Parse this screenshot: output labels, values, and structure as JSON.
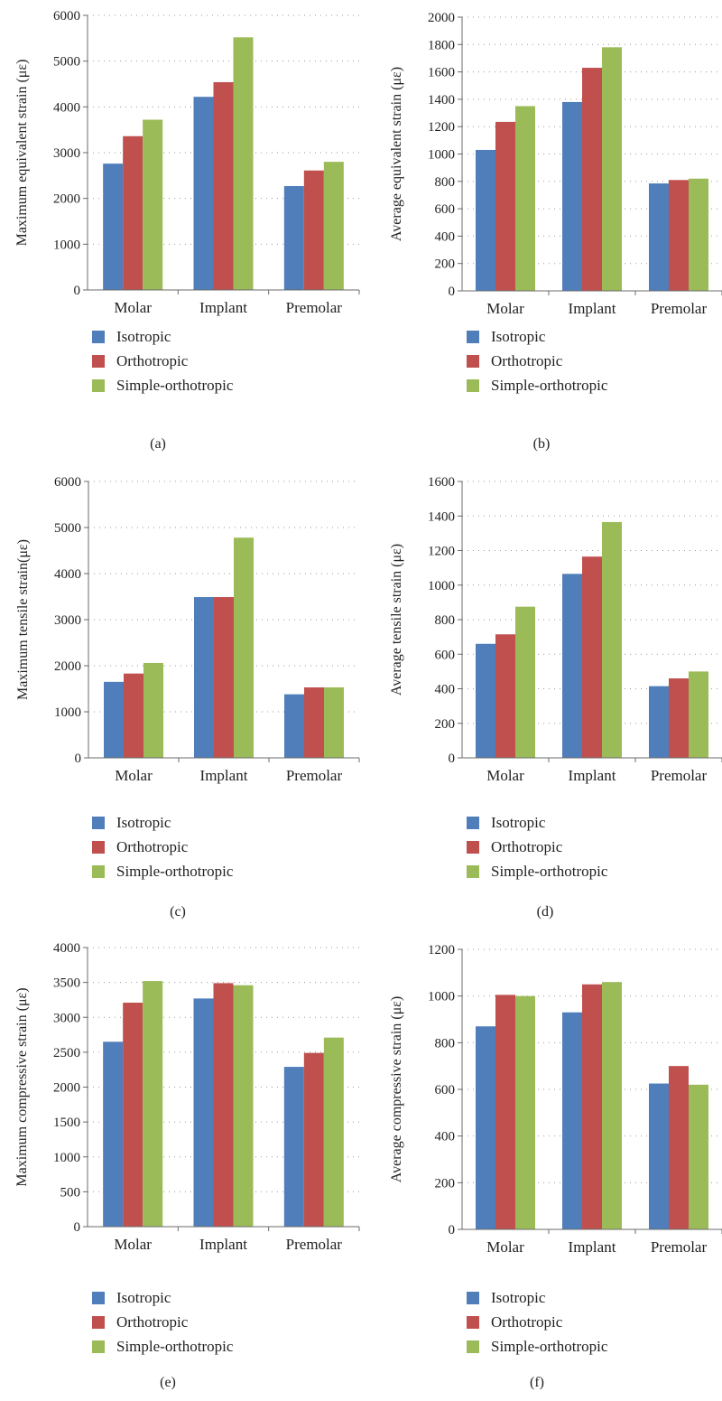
{
  "legend": {
    "items": [
      {
        "name": "Isotropic",
        "color": "#4f7ebb"
      },
      {
        "name": "Orthotropic",
        "color": "#bf504d"
      },
      {
        "name": "Simple-orthotropic",
        "color": "#9bbb58"
      }
    ]
  },
  "chart_data": [
    {
      "type": "bar",
      "caption": "(a)",
      "ylabel": "Maximum equivalent strain (με)",
      "categories": [
        "Molar",
        "Implant",
        "Premolar"
      ],
      "ylim": [
        0,
        6000
      ],
      "yticks": [
        0,
        1000,
        2000,
        3000,
        4000,
        5000,
        6000
      ],
      "grid": true,
      "series": [
        {
          "name": "Isotropic",
          "values": [
            2760,
            4220,
            2270
          ]
        },
        {
          "name": "Orthotropic",
          "values": [
            3360,
            4540,
            2610
          ]
        },
        {
          "name": "Simple-orthotropic",
          "values": [
            3720,
            5520,
            2800
          ]
        }
      ]
    },
    {
      "type": "bar",
      "caption": "(b)",
      "ylabel": "Average equivalent strain (με)",
      "categories": [
        "Molar",
        "Implant",
        "Premolar"
      ],
      "ylim": [
        0,
        2000
      ],
      "yticks": [
        0,
        200,
        400,
        600,
        800,
        1000,
        1200,
        1400,
        1600,
        1800,
        2000
      ],
      "grid": true,
      "series": [
        {
          "name": "Isotropic",
          "values": [
            1030,
            1380,
            785
          ]
        },
        {
          "name": "Orthotropic",
          "values": [
            1235,
            1630,
            810
          ]
        },
        {
          "name": "Simple-orthotropic",
          "values": [
            1350,
            1780,
            820
          ]
        }
      ]
    },
    {
      "type": "bar",
      "caption": "(c)",
      "ylabel": "Maximum tensile strain(με)",
      "categories": [
        "Molar",
        "Implant",
        "Premolar"
      ],
      "ylim": [
        0,
        6000
      ],
      "yticks": [
        0,
        1000,
        2000,
        3000,
        4000,
        5000,
        6000
      ],
      "grid": true,
      "series": [
        {
          "name": "Isotropic",
          "values": [
            1650,
            3490,
            1380
          ]
        },
        {
          "name": "Orthotropic",
          "values": [
            1830,
            3490,
            1530
          ]
        },
        {
          "name": "Simple-orthotropic",
          "values": [
            2060,
            4780,
            1530
          ]
        }
      ]
    },
    {
      "type": "bar",
      "caption": "(d)",
      "ylabel": "Average tensile strain (με)",
      "categories": [
        "Molar",
        "Implant",
        "Premolar"
      ],
      "ylim": [
        0,
        1600
      ],
      "yticks": [
        0,
        200,
        400,
        600,
        800,
        1000,
        1200,
        1400,
        1600
      ],
      "grid": true,
      "series": [
        {
          "name": "Isotropic",
          "values": [
            660,
            1065,
            415
          ]
        },
        {
          "name": "Orthotropic",
          "values": [
            715,
            1165,
            460
          ]
        },
        {
          "name": "Simple-orthotropic",
          "values": [
            875,
            1365,
            500
          ]
        }
      ]
    },
    {
      "type": "bar",
      "caption": "(e)",
      "ylabel": "Maximum compressive strain (με)",
      "categories": [
        "Molar",
        "Implant",
        "Premolar"
      ],
      "ylim": [
        0,
        4000
      ],
      "yticks": [
        0,
        500,
        1000,
        1500,
        2000,
        2500,
        3000,
        3500,
        4000
      ],
      "grid": true,
      "series": [
        {
          "name": "Isotropic",
          "values": [
            2650,
            3270,
            2290
          ]
        },
        {
          "name": "Orthotropic",
          "values": [
            3210,
            3490,
            2490
          ]
        },
        {
          "name": "Simple-orthotropic",
          "values": [
            3520,
            3460,
            2710
          ]
        }
      ]
    },
    {
      "type": "bar",
      "caption": "(f)",
      "ylabel": "Average compressive strain (με)",
      "categories": [
        "Molar",
        "Implant",
        "Premolar"
      ],
      "ylim": [
        0,
        1200
      ],
      "yticks": [
        0,
        200,
        400,
        600,
        800,
        1000,
        1200
      ],
      "grid": true,
      "series": [
        {
          "name": "Isotropic",
          "values": [
            870,
            930,
            625
          ]
        },
        {
          "name": "Orthotropic",
          "values": [
            1005,
            1050,
            700
          ]
        },
        {
          "name": "Simple-orthotropic",
          "values": [
            1000,
            1060,
            620
          ]
        }
      ]
    }
  ]
}
